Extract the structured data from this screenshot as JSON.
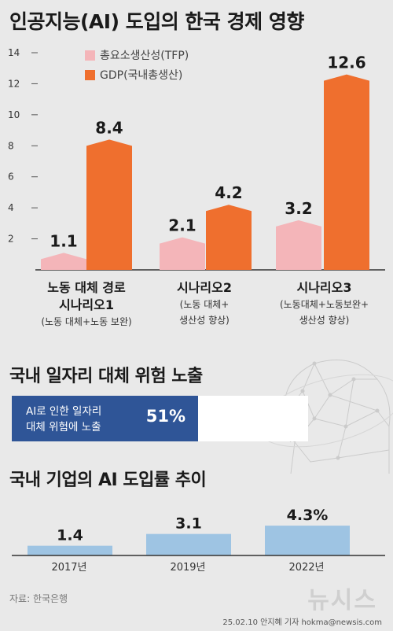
{
  "title": "인공지능(AI) 도입의 한국 경제 영향",
  "legend": {
    "tfp": "총요소생산성(TFP)",
    "gdp": "GDP(국내총생산)"
  },
  "colors": {
    "tfp": "#f4b5b9",
    "gdp": "#ef6f2e",
    "risk": "#2f5597",
    "adoption": "#9ec4e3"
  },
  "scenario_labels": [
    {
      "name": "노동 대체 경로",
      "sub": "시나리오1",
      "note": "(노동 대체+노동 보완)"
    },
    {
      "name": "시나리오2",
      "note": "(노동 대체+",
      "note2": "생산성 향상)"
    },
    {
      "name": "시나리오3",
      "note": "(노동대체+노동보완+",
      "note2": "생산성 향상)"
    }
  ],
  "section2_title": "국내 일자리 대체 위험 노출",
  "risk": {
    "label_line1": "AI로 인한 일자리",
    "label_line2": "대체 위험에 노출",
    "value_text": "51%",
    "value": 51
  },
  "section3_title": "국내 기업의 AI 도입률 추이",
  "source": "자료: 한국은행",
  "credit": "25.02.10 안지혜 기자 hokma@newsis.com",
  "logo": "뉴시스",
  "chart_data": [
    {
      "type": "bar",
      "title": "인공지능(AI) 도입의 한국 경제 영향",
      "categories": [
        "노동 대체 경로 시나리오1",
        "시나리오2",
        "시나리오3"
      ],
      "series": [
        {
          "name": "총요소생산성(TFP)",
          "values": [
            1.1,
            2.1,
            3.2
          ],
          "labels": [
            "1.1",
            "2.1",
            "3.2"
          ]
        },
        {
          "name": "GDP(국내총생산)",
          "values": [
            8.4,
            4.2,
            12.6
          ],
          "labels": [
            "8.4",
            "4.2",
            "12.6"
          ]
        }
      ],
      "yticks": [
        2,
        4,
        6,
        8,
        10,
        12,
        14
      ],
      "ylim": [
        0,
        14
      ],
      "grid": false,
      "legend_position": "top-left"
    },
    {
      "type": "bar",
      "title": "국내 기업의 AI 도입률 추이",
      "categories": [
        "2017년",
        "2019년",
        "2022년"
      ],
      "values": [
        1.4,
        3.1,
        4.3
      ],
      "labels": [
        "1.4",
        "3.1",
        "4.3%"
      ],
      "ylim": [
        0,
        5
      ]
    }
  ]
}
